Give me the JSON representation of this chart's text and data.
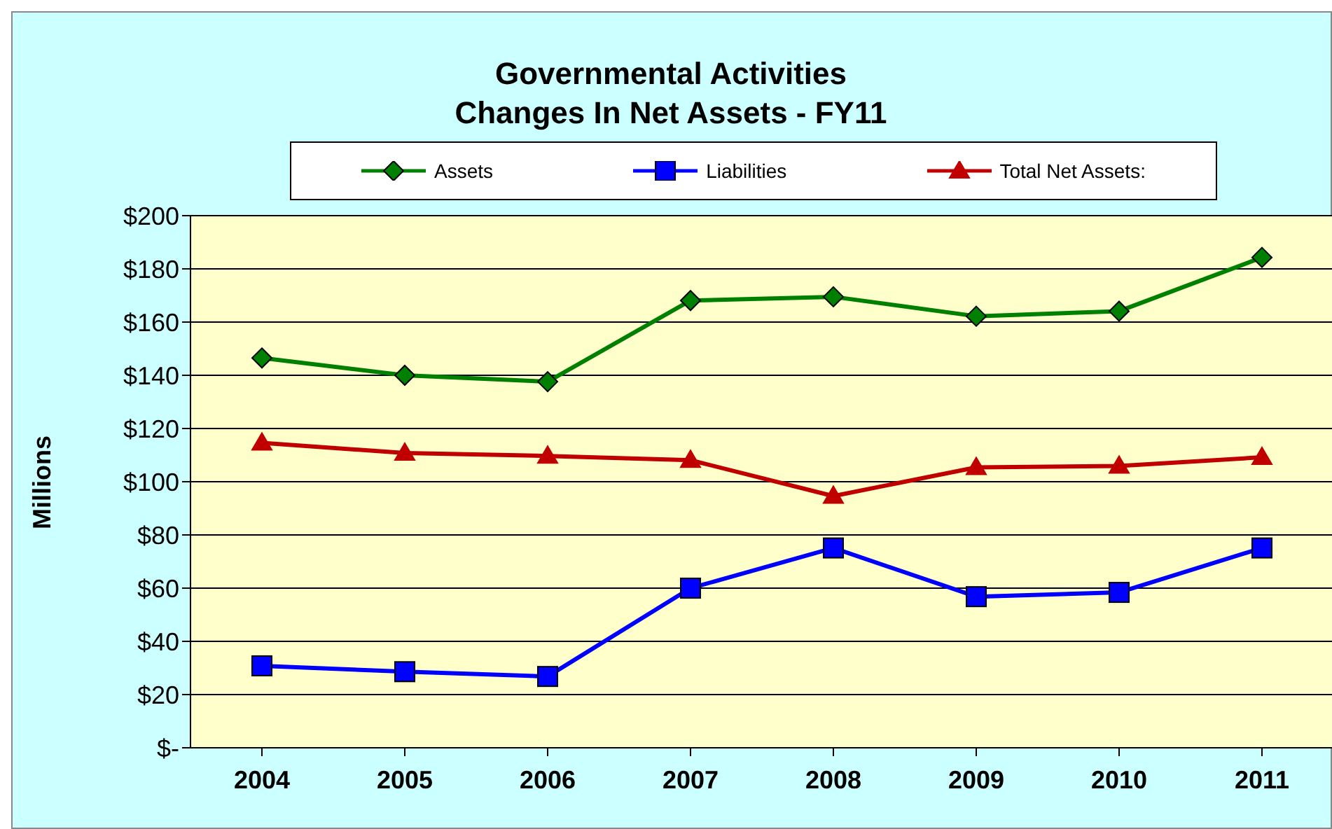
{
  "chart_data": {
    "type": "line",
    "title": "Governmental Activities\nChanges In Net Assets - FY11",
    "ylabel": "Millions",
    "categories": [
      "2004",
      "2005",
      "2006",
      "2007",
      "2008",
      "2009",
      "2010",
      "2011"
    ],
    "series": [
      {
        "name": "Assets",
        "color": "#008000",
        "marker": "diamond",
        "values": [
          146.5,
          140,
          137.6,
          168.1,
          169.5,
          162.2,
          164.1,
          184.3
        ]
      },
      {
        "name": "Liabilities",
        "color": "#0000ff",
        "marker": "square",
        "values": [
          30.8,
          28.6,
          26.8,
          60,
          75.1,
          56.8,
          58.4,
          75.1
        ]
      },
      {
        "name": "Total Net Assets:",
        "color": "#c00000",
        "marker": "triangle",
        "values": [
          114.6,
          110.8,
          109.7,
          108.1,
          94.6,
          105.4,
          105.9,
          109.2
        ]
      }
    ],
    "ylim": [
      0,
      200
    ],
    "yticks": [
      {
        "value": 0,
        "label": "$-"
      },
      {
        "value": 20,
        "label": "$20"
      },
      {
        "value": 40,
        "label": "$40"
      },
      {
        "value": 60,
        "label": "$60"
      },
      {
        "value": 80,
        "label": "$80"
      },
      {
        "value": 100,
        "label": "$100"
      },
      {
        "value": 120,
        "label": "$120"
      },
      {
        "value": 140,
        "label": "$140"
      },
      {
        "value": 160,
        "label": "$160"
      },
      {
        "value": 180,
        "label": "$180"
      },
      {
        "value": 200,
        "label": "$200"
      }
    ],
    "grid": "y",
    "legend": "top"
  }
}
